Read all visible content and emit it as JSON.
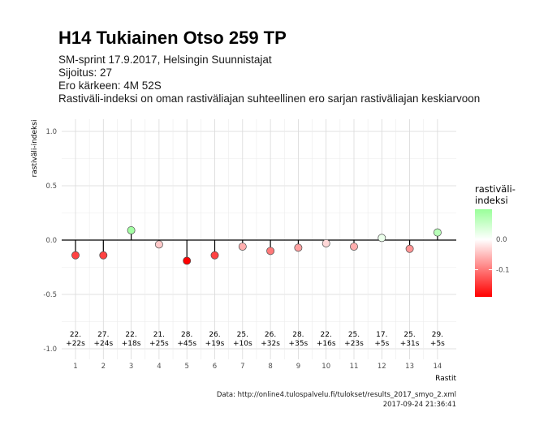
{
  "header": {
    "title": "H14 Tukiainen Otso 259 TP",
    "subtitle_lines": [
      "SM-sprint 17.9.2017, Helsingin Suunnistajat",
      "Sijoitus: 27",
      "Ero kärkeen: 4M 52S",
      "Rastiväli-indeksi on oman rastiväliajan suhteellinen ero sarjan rastiväliajan keskiarvoon"
    ]
  },
  "caption": {
    "source": "Data: http://online4.tulospalvelu.fi/tulokset/results_2017_smyo_2.xml",
    "timestamp": "2017-09-24 21:36:41"
  },
  "legend": {
    "title_lines": [
      "rastiväli-",
      "indeksi"
    ],
    "ticks": [
      {
        "value": 0.0,
        "label": "0.0"
      },
      {
        "value": -0.1,
        "label": "-0.1"
      }
    ],
    "range": [
      -0.19,
      0.1
    ],
    "low_color": "#ff0000",
    "mid_color": "#ffffff",
    "high_color": "#99ff99"
  },
  "chart_data": {
    "type": "scatter",
    "xlabel": "Rastit",
    "ylabel": "rastiväli-indeksi",
    "ylim": [
      -1.0,
      1.0
    ],
    "yticks": [
      1.0,
      0.5,
      0.0,
      -0.5,
      -1.0
    ],
    "ytick_labels": [
      "1.0",
      "0.5",
      "0.0",
      "-0.5",
      "-1.0"
    ],
    "x": [
      1,
      2,
      3,
      4,
      5,
      6,
      7,
      8,
      9,
      10,
      11,
      12,
      13,
      14
    ],
    "xtick_labels": [
      "1",
      "2",
      "3",
      "4",
      "5",
      "6",
      "7",
      "8",
      "9",
      "10",
      "11",
      "12",
      "13",
      "14"
    ],
    "values": [
      -0.14,
      -0.14,
      0.09,
      -0.04,
      -0.19,
      -0.14,
      -0.06,
      -0.1,
      -0.07,
      -0.03,
      -0.06,
      0.02,
      -0.08,
      0.07
    ],
    "split_ranks": [
      "22.",
      "27.",
      "22.",
      "21.",
      "28.",
      "26.",
      "25.",
      "26.",
      "28.",
      "22.",
      "25.",
      "17.",
      "25.",
      "29."
    ],
    "split_diffs": [
      "+22s",
      "+24s",
      "+18s",
      "+25s",
      "+45s",
      "+19s",
      "+10s",
      "+32s",
      "+35s",
      "+16s",
      "+23s",
      "+5s",
      "+31s",
      "+5s"
    ],
    "grid": true,
    "legend_position": "right"
  }
}
